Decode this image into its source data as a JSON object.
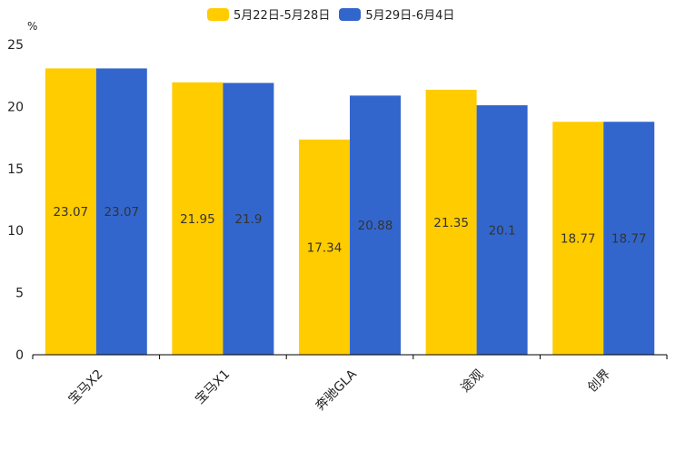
{
  "chart_data": {
    "type": "bar",
    "title": "",
    "ylabel": "%",
    "xlabel": "",
    "ylim": [
      0,
      25
    ],
    "yticks": [
      0,
      5,
      10,
      15,
      20,
      25
    ],
    "categories": [
      "宝马X2",
      "宝马X1",
      "奔驰GLA",
      "途观",
      "创界"
    ],
    "series": [
      {
        "name": "5月22日-5月28日",
        "color": "#FFCC00",
        "values": [
          23.07,
          21.95,
          17.34,
          21.35,
          18.77
        ]
      },
      {
        "name": "5月29日-6月4日",
        "color": "#3366CC",
        "values": [
          23.07,
          21.9,
          20.88,
          20.1,
          18.77
        ]
      }
    ],
    "legend_position": "top"
  }
}
